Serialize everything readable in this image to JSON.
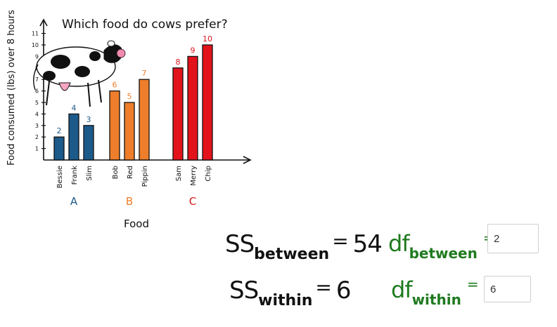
{
  "chart_data": {
    "type": "bar",
    "title": "Which food do cows prefer?",
    "ylabel": "Food consumed (lbs) over 8 hours",
    "xlabel": "Food",
    "ylim": [
      0,
      11
    ],
    "yticks": [
      "1",
      "2",
      "3",
      "4",
      "5",
      "6",
      "7",
      "8",
      "9",
      "10",
      "11"
    ],
    "categories": [
      "Bessie",
      "Frank",
      "Slim",
      "Bob",
      "Red",
      "Pippin",
      "Sam",
      "Merry",
      "Chip"
    ],
    "groups": [
      {
        "name": "A",
        "color": "#1c5a8a",
        "label_color": "#1c5a8a",
        "members": [
          "Bessie",
          "Frank",
          "Slim"
        ],
        "values": [
          2,
          4,
          3
        ]
      },
      {
        "name": "B",
        "color": "#ee7e2b",
        "label_color": "#ee7e2b",
        "members": [
          "Bob",
          "Red",
          "Pippin"
        ],
        "values": [
          6,
          5,
          7
        ]
      },
      {
        "name": "C",
        "color": "#e3131b",
        "label_color": "#d6151d",
        "members": [
          "Sam",
          "Merry",
          "Chip"
        ],
        "values": [
          8,
          9,
          10
        ]
      }
    ],
    "value_labels": [
      "2",
      "4",
      "3",
      "6",
      "5",
      "7",
      "8",
      "9",
      "10"
    ]
  },
  "illustration": {
    "name": "cow-illustration"
  },
  "equations": {
    "ss_between": {
      "prefix": "SS",
      "sub": "between",
      "op": "=",
      "value": "54"
    },
    "ss_within": {
      "prefix": "SS",
      "sub": "within",
      "op": "=",
      "value": "6"
    },
    "df_between": {
      "prefix": "df",
      "sub": "between",
      "op": "="
    },
    "df_within": {
      "prefix": "df",
      "sub": "within",
      "op": "="
    }
  },
  "inputs": {
    "df_between_value": "2",
    "df_within_value": "6"
  },
  "colors": {
    "df_green": "#1f7a1f",
    "axis": "#111111"
  }
}
